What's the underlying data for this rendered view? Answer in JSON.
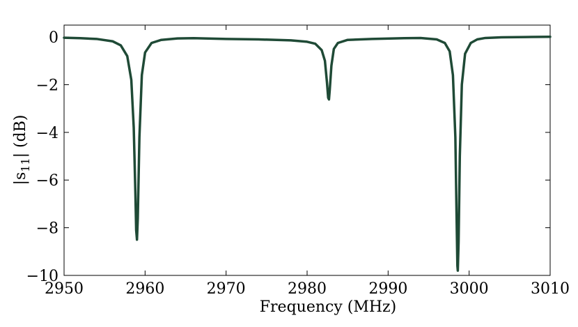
{
  "chart_data": {
    "type": "line",
    "xlabel": "Frequency (MHz)",
    "ylabel_main": "|s",
    "ylabel_sub": "11",
    "ylabel_rest": "| (dB)",
    "xlim": [
      2950,
      3010
    ],
    "ylim": [
      -10,
      0.5
    ],
    "xticks": [
      2950,
      2960,
      2970,
      2980,
      2990,
      3000,
      3010
    ],
    "yticks": [
      0,
      -2,
      -4,
      -6,
      -8,
      -10
    ],
    "ytick_labels": [
      "0",
      "−2",
      "−4",
      "−6",
      "−8",
      "−10"
    ],
    "grid": false,
    "line_color": "#1f4a36",
    "series": [
      {
        "x": [
          2950,
          2952,
          2954,
          2956,
          2957,
          2957.8,
          2958.3,
          2958.6,
          2958.8,
          2958.9,
          2959.0,
          2959.1,
          2959.3,
          2959.6,
          2960.0,
          2960.8,
          2962,
          2964,
          2966,
          2970,
          2974,
          2978,
          2980,
          2981,
          2981.8,
          2982.2,
          2982.45,
          2982.6,
          2982.7,
          2982.8,
          2983.0,
          2983.3,
          2983.8,
          2985,
          2988,
          2992,
          2994,
          2996,
          2997,
          2997.6,
          2998.0,
          2998.3,
          2998.45,
          2998.55,
          2998.6,
          2998.7,
          2998.85,
          2999.1,
          2999.5,
          3000.2,
          3001,
          3002,
          3004,
          3007,
          3010
        ],
        "y": [
          -0.03,
          -0.05,
          -0.08,
          -0.18,
          -0.35,
          -0.8,
          -1.8,
          -3.8,
          -6.5,
          -8.1,
          -8.5,
          -7.6,
          -4.2,
          -1.6,
          -0.65,
          -0.25,
          -0.12,
          -0.06,
          -0.05,
          -0.08,
          -0.1,
          -0.14,
          -0.2,
          -0.28,
          -0.55,
          -1.0,
          -1.9,
          -2.55,
          -2.62,
          -2.2,
          -1.2,
          -0.5,
          -0.25,
          -0.12,
          -0.08,
          -0.05,
          -0.04,
          -0.1,
          -0.25,
          -0.6,
          -1.6,
          -4.2,
          -7.5,
          -9.6,
          -9.8,
          -8.6,
          -5.0,
          -2.0,
          -0.7,
          -0.25,
          -0.1,
          -0.04,
          -0.01,
          0.0,
          0.01
        ]
      }
    ]
  }
}
